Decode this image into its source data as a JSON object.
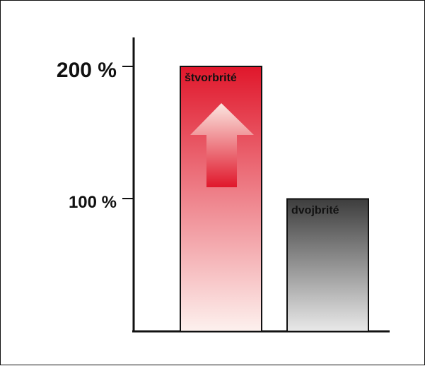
{
  "chart_data": {
    "type": "bar",
    "categories": [
      "štvorbrité",
      "dvojbrité"
    ],
    "values": [
      200,
      100
    ],
    "ylim": [
      0,
      200
    ],
    "yticks": [
      "100 %",
      "200 %"
    ],
    "title": "",
    "xlabel": "",
    "ylabel": "",
    "grid": false,
    "legend": "none",
    "colors": {
      "stvorbrite_top": "#e0172b",
      "stvorbrite_bottom": "#fdf1ee",
      "dvojbrite_top": "#3d3d3d",
      "dvojbrite_bottom": "#e9e9e9",
      "arrow": "#e0172b"
    },
    "annotations": [
      {
        "type": "up-arrow",
        "on": "štvorbrité"
      }
    ]
  }
}
